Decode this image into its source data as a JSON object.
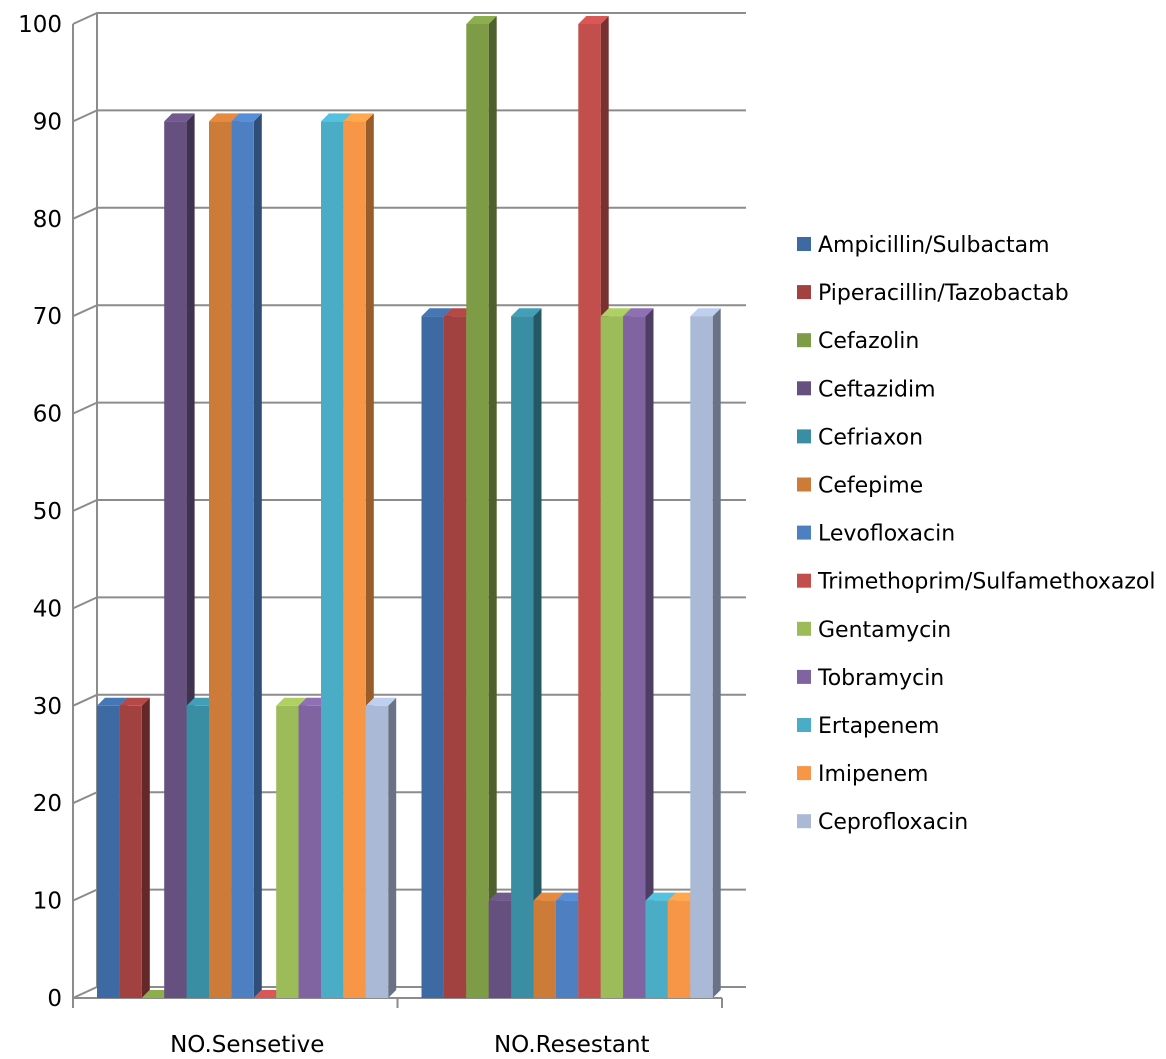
{
  "chart_data": {
    "type": "bar",
    "categories": [
      "NO.Sensetive",
      "NO.Resestant"
    ],
    "ylim": [
      0,
      100
    ],
    "yticks": [
      "0",
      "10",
      "20",
      "30",
      "40",
      "50",
      "60",
      "70",
      "80",
      "90",
      "100"
    ],
    "grid": true,
    "legend_position": "right",
    "series": [
      {
        "name": "Ampicillin/Sulbactam",
        "color": "#3e6aa3",
        "values": [
          30,
          70
        ]
      },
      {
        "name": "Piperacillin/Tazobactab",
        "color": "#a14140",
        "values": [
          30,
          70
        ]
      },
      {
        "name": "Cefazolin",
        "color": "#7e9b45",
        "values": [
          0,
          100
        ]
      },
      {
        "name": "Ceftazidim",
        "color": "#66507f",
        "values": [
          90,
          10
        ]
      },
      {
        "name": "Cefriaxon",
        "color": "#3a8ea3",
        "values": [
          30,
          70
        ]
      },
      {
        "name": "Cefepime",
        "color": "#cd7b38",
        "values": [
          90,
          10
        ]
      },
      {
        "name": "Levofloxacin",
        "color": "#4e7fc1",
        "values": [
          90,
          10
        ]
      },
      {
        "name": "Trimethoprim/Sulfamethoxazol",
        "color": "#c24f4c",
        "values": [
          0,
          100
        ]
      },
      {
        "name": "Gentamycin",
        "color": "#9cbb59",
        "values": [
          30,
          70
        ]
      },
      {
        "name": "Tobramycin",
        "color": "#8064a2",
        "values": [
          30,
          70
        ]
      },
      {
        "name": "Ertapenem",
        "color": "#4bacc6",
        "values": [
          90,
          10
        ]
      },
      {
        "name": "Imipenem",
        "color": "#f79646",
        "values": [
          90,
          10
        ]
      },
      {
        "name": "Ceprofloxacin",
        "color": "#aab9d6",
        "values": [
          30,
          70
        ]
      }
    ]
  }
}
